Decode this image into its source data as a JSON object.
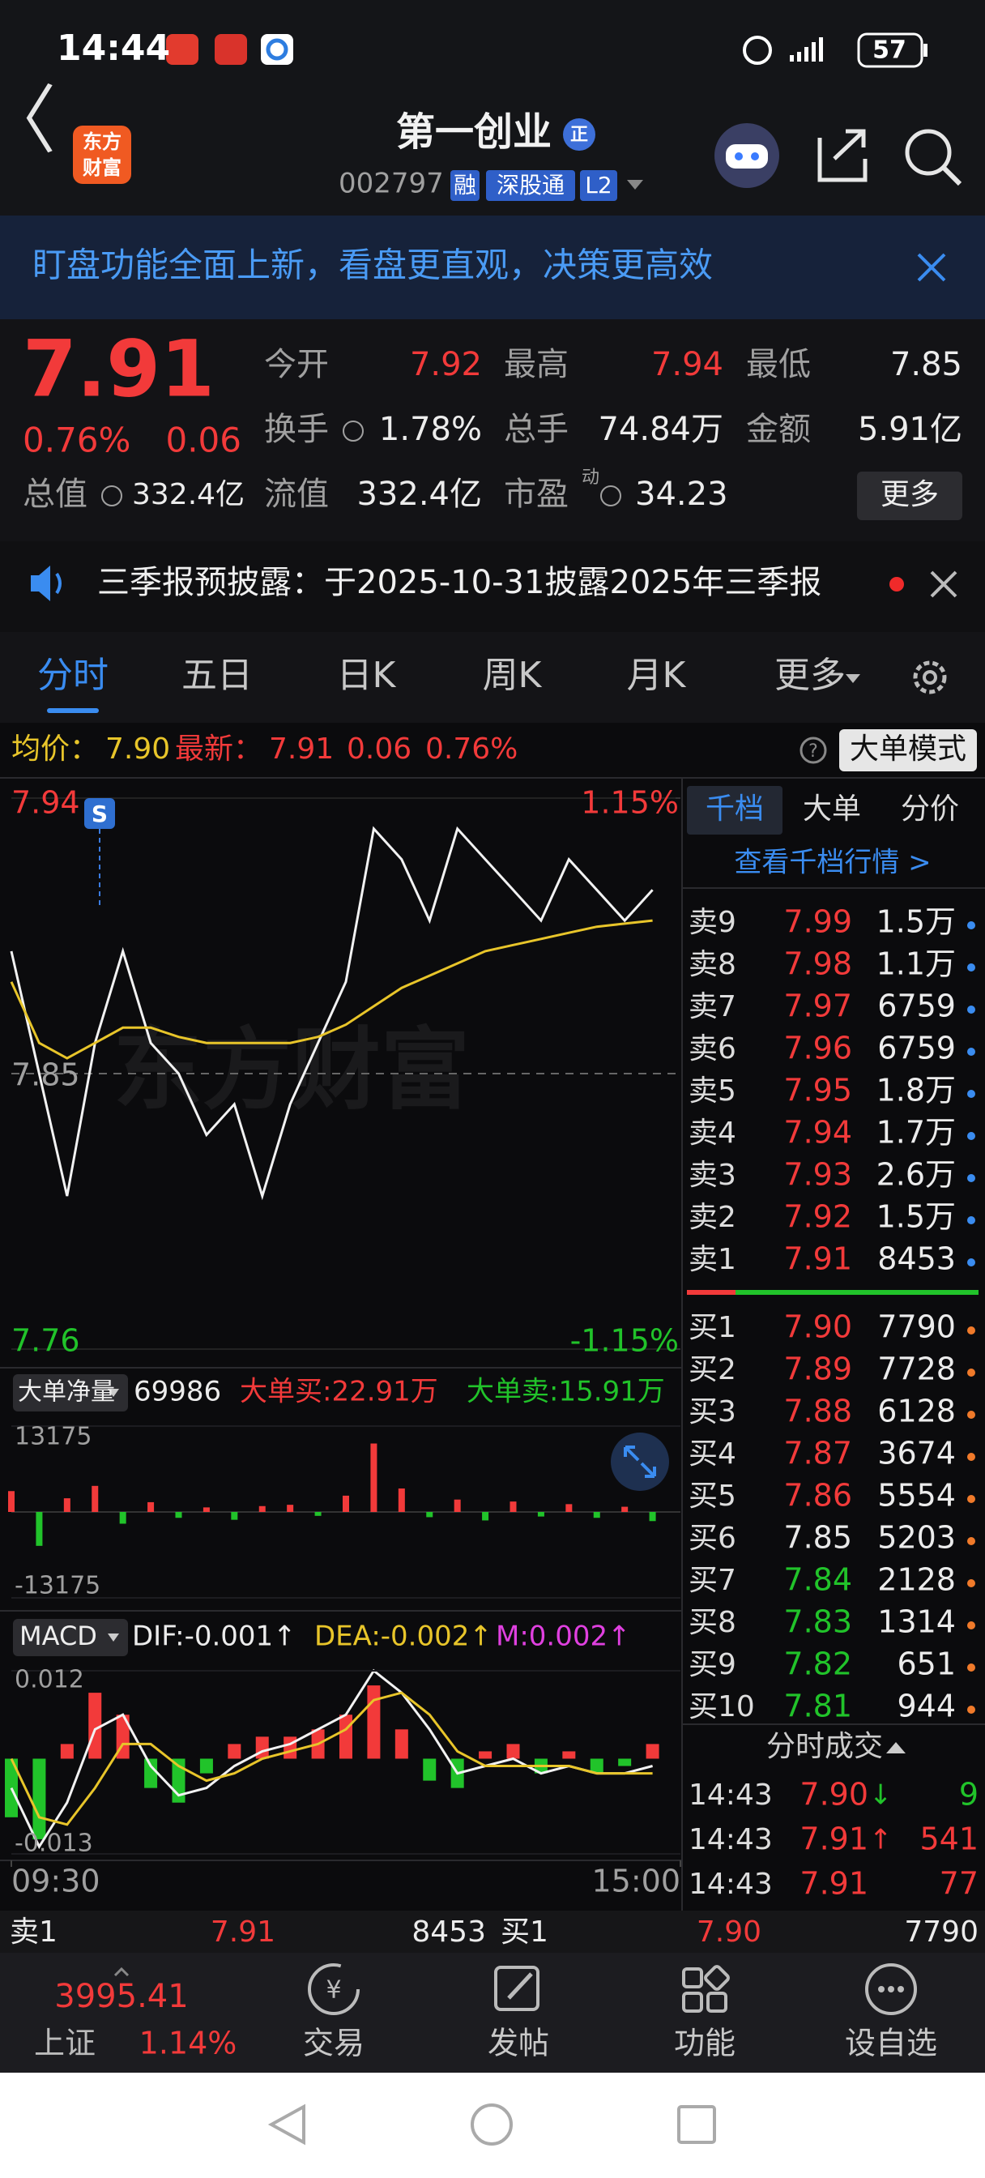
{
  "status_bar": {
    "time": "14:44",
    "battery": "57"
  },
  "header": {
    "logo": [
      "东方",
      "财富"
    ],
    "title": "第一创业",
    "badge": "正",
    "code": "002797",
    "tags": [
      "融",
      "深股通",
      "L2"
    ]
  },
  "banner": {
    "text": "盯盘功能全面上新，看盘更直观，决策更高效"
  },
  "quote": {
    "price": "7.91",
    "change_pct": "0.76%",
    "change": "0.06",
    "fields": [
      {
        "label": "今开",
        "value": "7.92"
      },
      {
        "label": "最高",
        "value": "7.94"
      },
      {
        "label": "最低",
        "value": "7.85"
      },
      {
        "label": "换手",
        "value": "1.78%"
      },
      {
        "label": "总手",
        "value": "74.84万"
      },
      {
        "label": "金额",
        "value": "5.91亿"
      },
      {
        "label": "总值",
        "value": "332.4亿"
      },
      {
        "label": "流值",
        "value": "332.4亿"
      },
      {
        "label": "市盈",
        "tag": "动",
        "value": "34.23"
      }
    ],
    "more": "更多"
  },
  "notice": {
    "text": "三季报预披露：于2025-10-31披露2025年三季报"
  },
  "tabs": [
    "分时",
    "五日",
    "日K",
    "周K",
    "月K",
    "更多"
  ],
  "info_bar": {
    "avg_label": "均价：",
    "avg": "7.90",
    "last_label": "最新：",
    "last": "7.91",
    "change": "0.06",
    "change_pct": "0.76%",
    "mode": "大单模式"
  },
  "order_book": {
    "tabs": [
      "千档",
      "大单",
      "分价"
    ],
    "link": "查看千档行情 >",
    "asks": [
      {
        "level": "卖9",
        "price": "7.99",
        "volume": "1.5万",
        "color": "#f23a3a"
      },
      {
        "level": "卖8",
        "price": "7.98",
        "volume": "1.1万",
        "color": "#f23a3a"
      },
      {
        "level": "卖7",
        "price": "7.97",
        "volume": "6759",
        "color": "#f23a3a"
      },
      {
        "level": "卖6",
        "price": "7.96",
        "volume": "6759",
        "color": "#f23a3a"
      },
      {
        "level": "卖5",
        "price": "7.95",
        "volume": "1.8万",
        "color": "#f23a3a"
      },
      {
        "level": "卖4",
        "price": "7.94",
        "volume": "1.7万",
        "color": "#f23a3a"
      },
      {
        "level": "卖3",
        "price": "7.93",
        "volume": "2.6万",
        "color": "#f23a3a"
      },
      {
        "level": "卖2",
        "price": "7.92",
        "volume": "1.5万",
        "color": "#f23a3a"
      },
      {
        "level": "卖1",
        "price": "7.91",
        "volume": "8453",
        "color": "#f23a3a"
      }
    ],
    "bids": [
      {
        "level": "买1",
        "price": "7.90",
        "volume": "7790",
        "color": "#f23a3a"
      },
      {
        "level": "买2",
        "price": "7.89",
        "volume": "7728",
        "color": "#f23a3a"
      },
      {
        "level": "买3",
        "price": "7.88",
        "volume": "6128",
        "color": "#f23a3a"
      },
      {
        "level": "买4",
        "price": "7.87",
        "volume": "3674",
        "color": "#f23a3a"
      },
      {
        "level": "买5",
        "price": "7.86",
        "volume": "5554",
        "color": "#f23a3a"
      },
      {
        "level": "买6",
        "price": "7.85",
        "volume": "5203",
        "color": "#e8e8e8"
      },
      {
        "level": "买7",
        "price": "7.84",
        "volume": "2128",
        "color": "#21c32a"
      },
      {
        "level": "买8",
        "price": "7.83",
        "volume": "1314",
        "color": "#21c32a"
      },
      {
        "level": "买9",
        "price": "7.82",
        "volume": "651",
        "color": "#21c32a"
      },
      {
        "level": "买10",
        "price": "7.81",
        "volume": "944",
        "color": "#21c32a"
      }
    ],
    "trades_title": "分时成交",
    "trades": [
      {
        "time": "14:43",
        "price": "7.90",
        "arrow": "↓",
        "volume": "9",
        "color": "#f23a3a",
        "arrow_color": "#21c32a",
        "volume_color": "#21c32a"
      },
      {
        "time": "14:43",
        "price": "7.91",
        "arrow": "↑",
        "volume": "541",
        "color": "#f23a3a",
        "arrow_color": "#f23a3a",
        "volume_color": "#f23a3a"
      },
      {
        "time": "14:43",
        "price": "7.91",
        "volume": "77",
        "color": "#f23a3a",
        "volume_color": "#f23a3a"
      }
    ]
  },
  "intraday": {
    "x": [
      0,
      10,
      20,
      30,
      40,
      50,
      60,
      70,
      80,
      90,
      100,
      110,
      120,
      130,
      140,
      150,
      160,
      170,
      180,
      190,
      200,
      210,
      220,
      230
    ],
    "xlim": [
      0,
      240
    ],
    "xticks": [
      {
        "value": 0,
        "label": "09:30"
      },
      {
        "value": 240,
        "label": "15:00"
      }
    ],
    "price": {
      "type": "line",
      "watermark": "东方财富",
      "ylim": [
        7.76,
        7.94
      ],
      "yticks": [
        7.76,
        7.85,
        7.94
      ],
      "y2lim": [
        -1.15,
        1.15
      ],
      "y2ticks": [
        {
          "value": -1.15,
          "label": "-1.15%"
        },
        {
          "value": 1.15,
          "label": "1.15%"
        }
      ],
      "series": [
        {
          "color": "#f2f2f2",
          "values": [
            7.89,
            7.85,
            7.81,
            7.86,
            7.89,
            7.86,
            7.85,
            7.83,
            7.84,
            7.81,
            7.84,
            7.86,
            7.88,
            7.93,
            7.92,
            7.9,
            7.93,
            7.92,
            7.91,
            7.9,
            7.92,
            7.91,
            7.9,
            7.91
          ]
        },
        {
          "color": "#e8c52a",
          "values": [
            7.88,
            7.86,
            7.855,
            7.86,
            7.865,
            7.865,
            7.862,
            7.86,
            7.86,
            7.86,
            7.86,
            7.862,
            7.866,
            7.872,
            7.878,
            7.882,
            7.886,
            7.89,
            7.892,
            7.894,
            7.896,
            7.898,
            7.899,
            7.9
          ]
        }
      ]
    },
    "net": {
      "type": "bar",
      "selector": "大单净量",
      "value_text": "69986",
      "buy": "大单买:22.91万",
      "sell": "大单卖:15.91万",
      "ylim": [
        -13175,
        13175
      ],
      "yticks": [
        -13175,
        13175
      ],
      "up_color": "#f23a3a",
      "down_color": "#21c32a",
      "values": [
        3200,
        -5200,
        2100,
        4000,
        -1800,
        1500,
        -900,
        700,
        -1200,
        900,
        1100,
        -600,
        2500,
        10500,
        3600,
        -800,
        1900,
        -1300,
        1600,
        -700,
        1200,
        -900,
        800,
        -1400
      ]
    },
    "macd": {
      "type": "bar",
      "selector": "MACD",
      "dif_label": "DIF:-0.001↑",
      "dea_label": "DEA:-0.002↑",
      "m_label": "M:0.002↑",
      "ylim": [
        -0.013,
        0.012
      ],
      "yticks": [
        -0.013,
        0.012
      ],
      "up_color": "#f23a3a",
      "down_color": "#21c32a",
      "values": [
        -0.008,
        -0.011,
        0.002,
        0.009,
        0.006,
        -0.004,
        -0.006,
        -0.002,
        0.002,
        0.003,
        0.003,
        0.004,
        0.006,
        0.01,
        0.004,
        -0.003,
        -0.004,
        0.001,
        0.002,
        -0.002,
        0.001,
        -0.002,
        -0.001,
        0.002
      ],
      "series": [
        {
          "color": "#f2f2f2",
          "values": [
            -0.004,
            -0.012,
            -0.006,
            0.004,
            0.006,
            -0.001,
            -0.005,
            -0.004,
            -0.001,
            0.001,
            0.002,
            0.004,
            0.006,
            0.012,
            0.009,
            0.004,
            -0.002,
            -0.001,
            0.0,
            -0.002,
            -0.001,
            -0.002,
            -0.002,
            -0.001
          ]
        },
        {
          "color": "#e8c52a",
          "values": [
            0,
            -0.008,
            -0.009,
            -0.004,
            0.002,
            0.002,
            -0.001,
            -0.003,
            -0.002,
            0.0,
            0.001,
            0.002,
            0.004,
            0.008,
            0.009,
            0.006,
            0.001,
            -0.001,
            -0.001,
            -0.001,
            -0.001,
            -0.002,
            -0.002,
            -0.002
          ]
        }
      ]
    }
  },
  "bottom_quote": {
    "ask_label": "卖1",
    "ask_price": "7.91",
    "ask_volume": "8453",
    "bid_label": "买1",
    "bid_price": "7.90",
    "bid_volume": "7790"
  },
  "nav": {
    "index_value": "3995.41",
    "index_name": "上证",
    "index_pct": "1.14%",
    "items": [
      "交易",
      "发帖",
      "功能",
      "设自选"
    ]
  }
}
